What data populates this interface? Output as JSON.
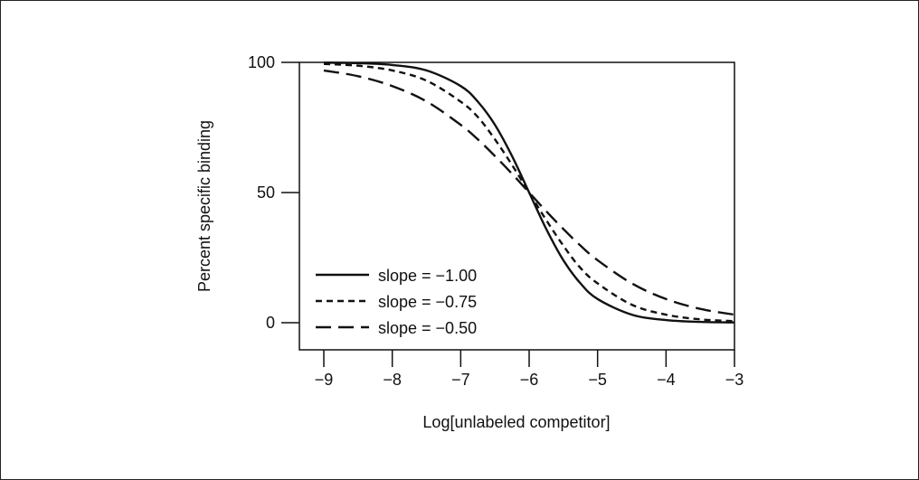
{
  "chart_data": {
    "type": "line",
    "title": "",
    "xlabel": "Log[unlabeled competitor]",
    "ylabel": "Percent specific binding",
    "xlim": [
      -9,
      -3
    ],
    "ylim": [
      0,
      100
    ],
    "x_ticks": [
      -9,
      -8,
      -7,
      -6,
      -5,
      -4,
      -3
    ],
    "x_tick_labels": [
      "−9",
      "−8",
      "−7",
      "−6",
      "−5",
      "−4",
      "−3"
    ],
    "y_ticks": [
      0,
      50,
      100
    ],
    "y_tick_labels": [
      "0",
      "50",
      "100"
    ],
    "grid": false,
    "legend_position": "lower-left",
    "series": [
      {
        "name": "slope = −1.00",
        "line_style": "solid",
        "color": "#111111",
        "x": [
          -9,
          -8.5,
          -8,
          -7.5,
          -7,
          -6.75,
          -6.5,
          -6.25,
          -6,
          -5.75,
          -5.5,
          -5.25,
          -5,
          -4.5,
          -4,
          -3.5,
          -3
        ],
        "y": [
          99.9,
          99.7,
          99.0,
          96.9,
          90.9,
          84.9,
          76.0,
          64.0,
          50.0,
          36.0,
          24.0,
          15.1,
          9.1,
          3.1,
          1.0,
          0.3,
          0.1
        ]
      },
      {
        "name": "slope = −0.75",
        "line_style": "short-dash",
        "color": "#111111",
        "x": [
          -9,
          -8.5,
          -8,
          -7.5,
          -7,
          -6.75,
          -6.5,
          -6.25,
          -6,
          -5.75,
          -5.5,
          -5.25,
          -5,
          -4.5,
          -4,
          -3.5,
          -3
        ],
        "y": [
          99.4,
          98.7,
          96.9,
          93.0,
          84.9,
          79.0,
          70.4,
          60.6,
          50.0,
          39.4,
          29.6,
          21.0,
          15.1,
          6.9,
          3.1,
          1.3,
          0.6
        ]
      },
      {
        "name": "slope = −0.50",
        "line_style": "long-dash",
        "color": "#111111",
        "x": [
          -9,
          -8.5,
          -8,
          -7.5,
          -7,
          -6.75,
          -6.5,
          -6.25,
          -6,
          -5.75,
          -5.5,
          -5.25,
          -5,
          -4.5,
          -4,
          -3.5,
          -3
        ],
        "y": [
          96.9,
          94.7,
          90.9,
          85.0,
          76.0,
          70.4,
          64.0,
          57.2,
          50.0,
          42.8,
          36.0,
          29.6,
          24.0,
          15.1,
          9.1,
          5.3,
          3.1
        ]
      }
    ]
  }
}
